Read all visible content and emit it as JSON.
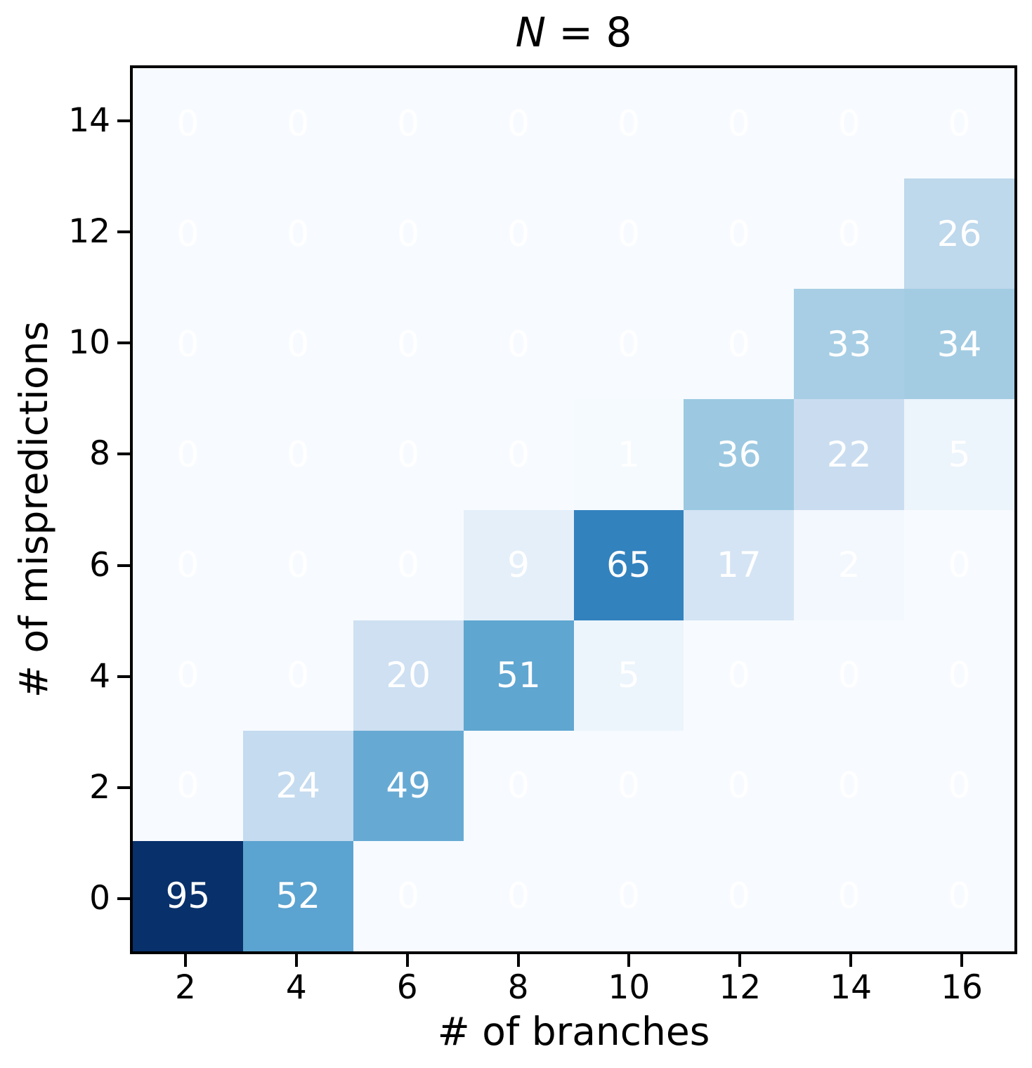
{
  "header": {
    "title_variable": "N",
    "title_rest": " = 8"
  },
  "chart_data": {
    "type": "heatmap",
    "title": "N = 8",
    "xlabel": "# of branches",
    "ylabel": "# of mispredictions",
    "x_tick_labels": [
      "2",
      "4",
      "6",
      "8",
      "10",
      "12",
      "14",
      "16"
    ],
    "y_tick_labels": [
      "0",
      "2",
      "4",
      "6",
      "8",
      "10",
      "12",
      "14"
    ],
    "x_range": [
      1,
      17
    ],
    "y_range": [
      -1,
      15
    ],
    "grid": false,
    "legend": "none",
    "colormap": "Blues",
    "vmin": 0,
    "vmax": 95,
    "annotation_text_color": "#ffffff",
    "axis_color": "#000000",
    "background_color": "#f7fbff",
    "colormap_anchors": [
      "#f7fbff",
      "#deebf7",
      "#c6dbef",
      "#9ecae1",
      "#6baed6",
      "#4292c6",
      "#2171b5",
      "#08519c",
      "#08306b"
    ],
    "rows": [
      {
        "y": 0,
        "values": [
          95,
          52,
          0,
          0,
          0,
          0,
          0,
          0
        ]
      },
      {
        "y": 2,
        "values": [
          0,
          24,
          49,
          0,
          0,
          0,
          0,
          0
        ]
      },
      {
        "y": 4,
        "values": [
          0,
          0,
          20,
          51,
          5,
          0,
          0,
          0
        ]
      },
      {
        "y": 6,
        "values": [
          0,
          0,
          0,
          9,
          65,
          17,
          2,
          0
        ]
      },
      {
        "y": 8,
        "values": [
          0,
          0,
          0,
          0,
          1,
          36,
          22,
          5
        ]
      },
      {
        "y": 10,
        "values": [
          0,
          0,
          0,
          0,
          0,
          0,
          33,
          34
        ]
      },
      {
        "y": 12,
        "values": [
          0,
          0,
          0,
          0,
          0,
          0,
          0,
          26
        ]
      },
      {
        "y": 14,
        "values": [
          0,
          0,
          0,
          0,
          0,
          0,
          0,
          0
        ]
      }
    ]
  }
}
